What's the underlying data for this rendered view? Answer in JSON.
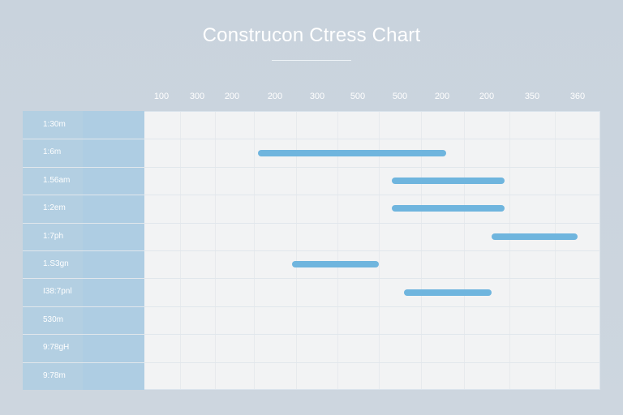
{
  "title": "Construcon Ctress Chart",
  "chart_data": {
    "type": "bar",
    "orientation": "horizontal-gantt",
    "title": "Construcon Ctress Chart",
    "x_ticks": [
      "100",
      "300",
      "200",
      "200",
      "300",
      "500",
      "500",
      "200",
      "200",
      "350",
      "360"
    ],
    "rows": [
      "1:30m",
      "1:6m",
      "1.56am",
      "1:2em",
      "1:7ph",
      "1.S3gn",
      "I38:7pnl",
      "530m",
      "9:78gH",
      "9:78m"
    ],
    "bars": [
      {
        "row": 1,
        "start_tick": 2.6,
        "end_tick": 7.1
      },
      {
        "row": 2,
        "start_tick": 5.8,
        "end_tick": 8.4
      },
      {
        "row": 3,
        "start_tick": 5.8,
        "end_tick": 8.4
      },
      {
        "row": 4,
        "start_tick": 8.1,
        "end_tick": 10.3
      },
      {
        "row": 5,
        "start_tick": 3.4,
        "end_tick": 5.5
      },
      {
        "row": 6,
        "start_tick": 6.1,
        "end_tick": 8.1
      }
    ],
    "grid": true
  },
  "colors": {
    "bar": "#6fb5de",
    "label_column": "#b3cfe2",
    "plot_bg": "#f2f3f4"
  }
}
